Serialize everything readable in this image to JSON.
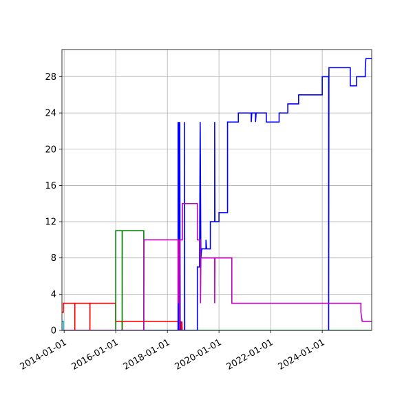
{
  "chart_data": {
    "type": "line",
    "title": "",
    "xlabel": "",
    "ylabel": "",
    "x_axis_type": "date",
    "xlim": [
      "2013-12-01",
      "2025-12-01"
    ],
    "ylim": [
      0,
      31
    ],
    "grid": true,
    "legend": "none",
    "x_ticks": [
      "2014-01-01",
      "2016-01-01",
      "2018-01-01",
      "2020-01-01",
      "2022-01-01",
      "2024-01-01"
    ],
    "y_ticks": [
      0,
      4,
      8,
      12,
      16,
      20,
      24,
      28
    ],
    "series": [
      {
        "color": "#00bfbf",
        "points": [
          [
            "2013-12-01",
            1
          ],
          [
            "2013-12-20",
            1
          ],
          [
            "2013-12-20",
            0
          ],
          [
            "2025-12-01",
            0
          ]
        ]
      },
      {
        "color": "#ff0000",
        "points": [
          [
            "2013-12-01",
            2
          ],
          [
            "2013-12-20",
            2
          ],
          [
            "2013-12-20",
            3
          ],
          [
            "2014-06-01",
            3
          ],
          [
            "2014-06-01",
            0
          ],
          [
            "2014-06-02",
            3
          ],
          [
            "2015-01-01",
            3
          ],
          [
            "2015-01-01",
            0
          ],
          [
            "2015-01-02",
            3
          ],
          [
            "2016-01-01",
            3
          ],
          [
            "2016-01-01",
            1
          ],
          [
            "2016-04-01",
            1
          ],
          [
            "2016-04-01",
            0
          ],
          [
            "2016-04-02",
            1
          ],
          [
            "2018-06-01",
            1
          ],
          [
            "2018-06-01",
            0
          ],
          [
            "2018-06-10",
            1
          ],
          [
            "2018-06-20",
            0
          ],
          [
            "2018-07-01",
            1
          ],
          [
            "2018-07-10",
            0
          ],
          [
            "2018-07-15",
            1
          ],
          [
            "2018-07-20",
            0
          ],
          [
            "2018-07-25",
            1
          ],
          [
            "2018-07-30",
            0
          ]
        ]
      },
      {
        "color": "#008000",
        "points": [
          [
            "2013-12-01",
            0
          ],
          [
            "2016-01-01",
            0
          ],
          [
            "2016-01-01",
            11
          ],
          [
            "2016-04-01",
            11
          ],
          [
            "2016-04-01",
            0
          ],
          [
            "2016-04-02",
            11
          ],
          [
            "2017-02-01",
            11
          ],
          [
            "2017-02-01",
            0
          ],
          [
            "2025-12-01",
            0
          ]
        ]
      },
      {
        "color": "#0000ff",
        "points": [
          [
            "2013-12-01",
            0
          ],
          [
            "2018-06-01",
            0
          ],
          [
            "2018-06-01",
            23
          ],
          [
            "2018-06-05",
            0
          ],
          [
            "2018-06-08",
            23
          ],
          [
            "2018-06-12",
            0
          ],
          [
            "2018-06-15",
            23
          ],
          [
            "2018-06-20",
            3
          ],
          [
            "2018-06-25",
            23
          ],
          [
            "2018-07-01",
            0
          ],
          [
            "2018-09-01",
            0
          ],
          [
            "2018-09-01",
            23
          ],
          [
            "2018-09-03",
            0
          ],
          [
            "2019-03-01",
            0
          ],
          [
            "2019-03-01",
            7
          ],
          [
            "2019-04-01",
            7
          ],
          [
            "2019-04-10",
            23
          ],
          [
            "2019-04-20",
            8
          ],
          [
            "2019-05-01",
            9
          ],
          [
            "2019-07-01",
            9
          ],
          [
            "2019-07-01",
            10
          ],
          [
            "2019-07-10",
            9
          ],
          [
            "2019-09-01",
            9
          ],
          [
            "2019-09-01",
            12
          ],
          [
            "2019-11-01",
            12
          ],
          [
            "2019-11-01",
            23
          ],
          [
            "2019-11-05",
            12
          ],
          [
            "2020-01-01",
            12
          ],
          [
            "2020-01-01",
            13
          ],
          [
            "2020-05-01",
            13
          ],
          [
            "2020-05-01",
            23
          ],
          [
            "2020-10-01",
            23
          ],
          [
            "2020-10-01",
            24
          ],
          [
            "2021-04-01",
            24
          ],
          [
            "2021-04-01",
            23
          ],
          [
            "2021-04-10",
            24
          ],
          [
            "2021-06-01",
            24
          ],
          [
            "2021-06-01",
            23
          ],
          [
            "2021-06-10",
            24
          ],
          [
            "2021-11-01",
            24
          ],
          [
            "2021-11-01",
            23
          ],
          [
            "2022-05-01",
            23
          ],
          [
            "2022-05-01",
            24
          ],
          [
            "2022-09-01",
            24
          ],
          [
            "2022-09-01",
            25
          ],
          [
            "2023-02-01",
            25
          ],
          [
            "2023-02-01",
            26
          ],
          [
            "2024-01-01",
            26
          ],
          [
            "2024-01-01",
            28
          ],
          [
            "2024-04-01",
            28
          ],
          [
            "2024-04-01",
            0
          ],
          [
            "2024-04-05",
            29
          ],
          [
            "2025-02-01",
            29
          ],
          [
            "2025-02-01",
            27
          ],
          [
            "2025-05-01",
            27
          ],
          [
            "2025-05-01",
            28
          ],
          [
            "2025-09-01",
            28
          ],
          [
            "2025-09-01",
            29
          ],
          [
            "2025-09-10",
            30
          ],
          [
            "2026-06-01",
            30
          ],
          [
            "2026-06-01",
            31
          ]
        ]
      },
      {
        "color": "#bf00bf",
        "points": [
          [
            "2013-12-01",
            0
          ],
          [
            "2017-02-01",
            0
          ],
          [
            "2017-02-01",
            3
          ],
          [
            "2017-02-05",
            10
          ],
          [
            "2018-06-01",
            10
          ],
          [
            "2018-06-01",
            3
          ],
          [
            "2018-06-05",
            10
          ],
          [
            "2018-06-10",
            3
          ],
          [
            "2018-06-15",
            10
          ],
          [
            "2018-06-20",
            0
          ],
          [
            "2018-06-25",
            10
          ],
          [
            "2018-08-01",
            10
          ],
          [
            "2018-08-01",
            14
          ],
          [
            "2019-03-01",
            14
          ],
          [
            "2019-03-01",
            10
          ],
          [
            "2019-04-15",
            10
          ],
          [
            "2019-04-15",
            3
          ],
          [
            "2019-04-20",
            8
          ],
          [
            "2019-11-01",
            8
          ],
          [
            "2019-11-01",
            3
          ],
          [
            "2019-11-05",
            8
          ],
          [
            "2020-07-01",
            8
          ],
          [
            "2020-07-01",
            3
          ],
          [
            "2025-07-01",
            3
          ],
          [
            "2025-07-01",
            2
          ],
          [
            "2025-07-20",
            1
          ],
          [
            "2026-06-01",
            1
          ]
        ]
      }
    ]
  }
}
